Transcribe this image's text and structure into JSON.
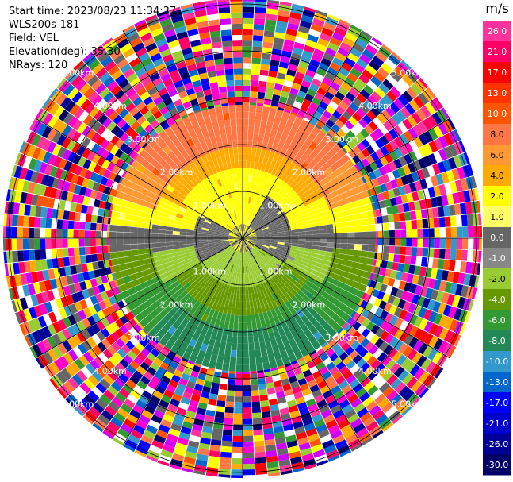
{
  "info": {
    "start_time": "Start time: 2023/08/23 11:34:37",
    "instrument": "WLS200s-181",
    "field": "Field: VEL",
    "elevation": "Elevation(deg): 35.30",
    "nrays": "NRays: 120"
  },
  "chart_data": {
    "type": "polar-ppi",
    "field": "VEL",
    "nrays": 120,
    "range_ring_labels_km": [
      "1.00km",
      "2.00km",
      "3.00km",
      "4.00km",
      "5.00km"
    ],
    "range_rings_km": [
      1,
      2,
      3,
      4,
      5
    ],
    "spokes_deg": [
      0,
      30,
      60,
      90,
      120,
      150,
      180,
      210,
      240,
      270,
      300,
      330
    ],
    "colorbar": {
      "unit": "m/s",
      "tick_labels": [
        "26.0",
        "21.0",
        "17.0",
        "13.0",
        "10.0",
        "8.0",
        "6.0",
        "4.0",
        "2.0",
        "1.0",
        "0.0",
        "-1.0",
        "-2.0",
        "-4.0",
        "-6.0",
        "-8.0",
        "-10.0",
        "-13.0",
        "-17.0",
        "-21.0",
        "-26.0",
        "-30.0"
      ],
      "colors": [
        "#ff3399",
        "#ff0066",
        "#ff0000",
        "#ff3300",
        "#ff5500",
        "#ff7744",
        "#ff9933",
        "#ffaa00",
        "#ffff00",
        "#ffff66",
        "#666666",
        "#888888",
        "#99cc33",
        "#669900",
        "#339933",
        "#228855",
        "#3399cc",
        "#0066cc",
        "#0000ff",
        "#0000cc",
        "#000099",
        "#000066"
      ]
    },
    "noise_colors": [
      "#ff3399",
      "#ff0066",
      "#ff0000",
      "#ff5500",
      "#ffaa00",
      "#ffff00",
      "#99cc33",
      "#339933",
      "#3399cc",
      "#0000ff",
      "#000099",
      "#0066cc",
      "#ff00cc",
      "#cc00ff",
      "#666666",
      "#ff7744",
      "#ffffff",
      "#000066"
    ]
  }
}
